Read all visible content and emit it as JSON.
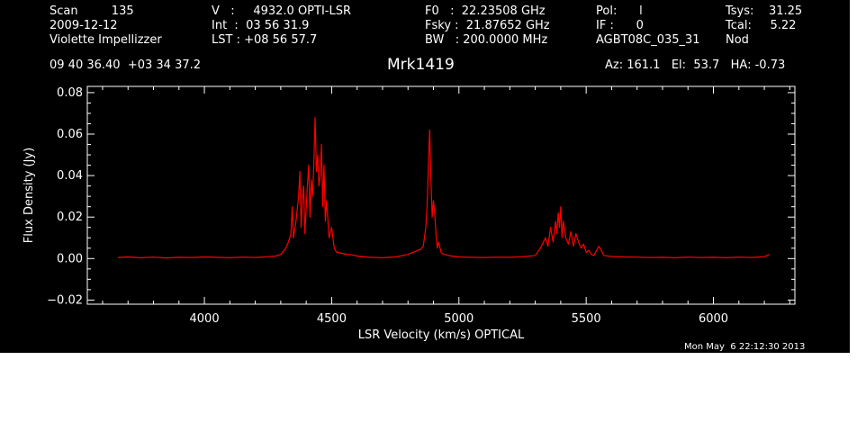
{
  "header": {
    "col1": [
      "Scan         135",
      "2009-12-12",
      "Violette Impellizzer"
    ],
    "col2": [
      "V   :     4932.0 OPTI-LSR",
      "Int  :  03 56 31.9",
      "LST : +08 56 57.7"
    ],
    "col3": [
      "F0   :  22.23508 GHz",
      "Fsky :  21.87652 GHz",
      "BW   : 200.0000 MHz"
    ],
    "col4": [
      "Pol:      l",
      "IF :      0",
      "AGBT08C_035_31"
    ],
    "col5": [
      "Tsys:    31.25",
      "Tcal:     5.22",
      "Nod"
    ]
  },
  "coords": "09 40 36.40  +03 34 37.2",
  "source_name": "Mrk1419",
  "pointing": "Az: 161.1   El:  53.7   HA: -0.73",
  "timestamp": "Mon May  6 22:12:30 2013",
  "chart_data": {
    "type": "line",
    "xlabel": "LSR Velocity (km/s) OPTICAL",
    "ylabel": "Flux Density (Jy)",
    "xlim": [
      3540,
      6320
    ],
    "ylim": [
      -0.022,
      0.083
    ],
    "xticks": [
      4000,
      4500,
      5000,
      5500,
      6000
    ],
    "xtick_labels": [
      "4000",
      "4500",
      "5000",
      "5500",
      "6000"
    ],
    "yticks": [
      -0.02,
      0.0,
      0.02,
      0.04,
      0.06,
      0.08
    ],
    "ytick_labels": [
      "−0.02",
      "0.00",
      "0.02",
      "0.04",
      "0.06",
      "0.08"
    ],
    "line_color": "#ff0000",
    "axis_color": "#ffffff",
    "series": [
      {
        "x": [
          3660,
          3700,
          3750,
          3800,
          3850,
          3900,
          3950,
          4000,
          4050,
          4100,
          4150,
          4200,
          4250,
          4280,
          4300,
          4320,
          4330,
          4340,
          4345,
          4350,
          4360,
          4370,
          4375,
          4380,
          4385,
          4390,
          4395,
          4400,
          4405,
          4410,
          4415,
          4420,
          4425,
          4430,
          4435,
          4440,
          4445,
          4450,
          4455,
          4460,
          4465,
          4470,
          4475,
          4480,
          4490,
          4500,
          4510,
          4520,
          4540,
          4560,
          4580,
          4600,
          4650,
          4700,
          4750,
          4800,
          4830,
          4850,
          4860,
          4870,
          4875,
          4880,
          4885,
          4890,
          4895,
          4900,
          4905,
          4910,
          4915,
          4920,
          4930,
          4940,
          4950,
          4970,
          5000,
          5050,
          5100,
          5150,
          5200,
          5250,
          5300,
          5320,
          5340,
          5350,
          5360,
          5370,
          5380,
          5385,
          5390,
          5395,
          5400,
          5405,
          5410,
          5415,
          5420,
          5430,
          5440,
          5450,
          5460,
          5470,
          5480,
          5490,
          5500,
          5510,
          5520,
          5530,
          5550,
          5570,
          5600,
          5650,
          5700,
          5750,
          5800,
          5850,
          5900,
          5950,
          6000,
          6050,
          6100,
          6150,
          6200,
          6220
        ],
        "y": [
          0.0005,
          0.0008,
          0.0004,
          0.0007,
          0.0003,
          0.0006,
          0.0005,
          0.0008,
          0.0006,
          0.0004,
          0.0007,
          0.0005,
          0.0009,
          0.0012,
          0.002,
          0.005,
          0.008,
          0.012,
          0.025,
          0.01,
          0.018,
          0.03,
          0.042,
          0.015,
          0.028,
          0.035,
          0.012,
          0.025,
          0.036,
          0.045,
          0.02,
          0.038,
          0.03,
          0.045,
          0.068,
          0.042,
          0.05,
          0.035,
          0.04,
          0.055,
          0.025,
          0.045,
          0.018,
          0.028,
          0.01,
          0.015,
          0.005,
          0.003,
          0.0025,
          0.002,
          0.0018,
          0.0012,
          0.0006,
          0.0004,
          0.0008,
          0.002,
          0.0035,
          0.0045,
          0.006,
          0.015,
          0.025,
          0.045,
          0.062,
          0.038,
          0.02,
          0.028,
          0.022,
          0.012,
          0.005,
          0.008,
          0.003,
          0.002,
          0.0018,
          0.0012,
          0.0008,
          0.0006,
          0.0005,
          0.0007,
          0.0006,
          0.0009,
          0.0015,
          0.005,
          0.01,
          0.006,
          0.015,
          0.008,
          0.018,
          0.012,
          0.022,
          0.015,
          0.025,
          0.01,
          0.018,
          0.014,
          0.01,
          0.007,
          0.013,
          0.006,
          0.012,
          0.008,
          0.005,
          0.007,
          0.003,
          0.004,
          0.002,
          0.0015,
          0.006,
          0.0015,
          0.001,
          0.0008,
          0.0007,
          0.0005,
          0.0006,
          0.0004,
          0.0007,
          0.0005,
          0.0006,
          0.0004,
          0.0007,
          0.0005,
          0.0009,
          0.002
        ]
      }
    ]
  }
}
